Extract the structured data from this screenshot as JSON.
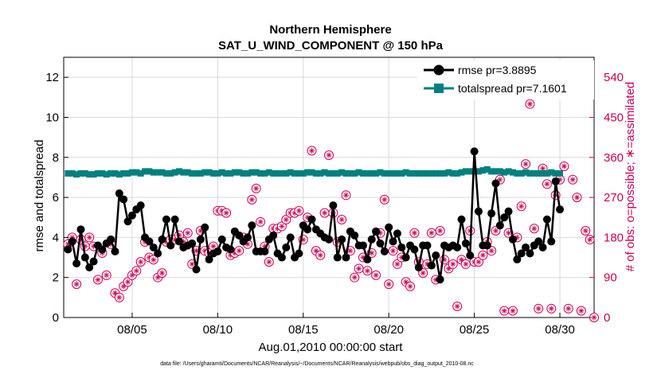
{
  "chart_data": {
    "type": "line",
    "title": "Northern Hemisphere",
    "subtitle": "SAT_U_WIND_COMPONENT @ 150 hPa",
    "xlabel": "Aug.01,2010 00:00:00 start",
    "ylabel": "rmse and totalspread",
    "y2label": "# of obs: o=possible; ∗=assimilated",
    "footnote": "data file: /Users/gharamti/Documents/NCAR/Reanalysis/~/Documents/NCAR/Reanalysis/webpub/obs_diag_output_2010-08.nc",
    "xlim": [
      1.0,
      32.0
    ],
    "ylim": [
      0,
      13
    ],
    "y2lim": [
      0,
      585
    ],
    "x_ticks": [
      5,
      10,
      15,
      20,
      25,
      30
    ],
    "x_tick_labels": [
      "08/05",
      "08/10",
      "08/15",
      "08/20",
      "08/25",
      "08/30"
    ],
    "y_ticks": [
      0,
      2,
      4,
      6,
      8,
      10,
      12
    ],
    "y_tick_labels": [
      "0",
      "2",
      "4",
      "6",
      "8",
      "10",
      "12"
    ],
    "y2_ticks": [
      0,
      90,
      180,
      270,
      360,
      450,
      540
    ],
    "y2_tick_labels": [
      "0",
      "90",
      "180",
      "270",
      "360",
      "450",
      "540"
    ],
    "x_step_days": 0.25,
    "x_start": 1.25,
    "series": [
      {
        "name": "rmse",
        "legend_label": "rmse pr=3.8895",
        "color": "#000000",
        "marker": "circle",
        "values": [
          3.4,
          3.8,
          2.7,
          4.4,
          3.0,
          2.5,
          2.8,
          3.6,
          3.4,
          3.7,
          3.9,
          3.3,
          6.2,
          5.9,
          4.8,
          5.1,
          5.4,
          5.6,
          4.0,
          3.8,
          3.5,
          3.2,
          3.9,
          4.9,
          3.6,
          4.9,
          3.8,
          3.5,
          3.6,
          3.7,
          2.4,
          3.9,
          4.5,
          2.9,
          3.2,
          3.3,
          3.9,
          3.5,
          3.4,
          4.3,
          4.1,
          3.8,
          4.0,
          4.6,
          3.3,
          3.3,
          3.3,
          3.9,
          4.1,
          3.2,
          3.0,
          3.5,
          4.0,
          3.0,
          3.2,
          4.6,
          4.4,
          4.9,
          4.4,
          4.2,
          4.0,
          3.9,
          5.6,
          3.0,
          3.9,
          3.0,
          4.3,
          4.1,
          3.6,
          3.6,
          2.9,
          3.9,
          4.3,
          3.7,
          3.3,
          4.5,
          3.8,
          4.2,
          3.5,
          3.0,
          3.6,
          3.4,
          2.5,
          3.6,
          3.6,
          2.6,
          3.1,
          1.9,
          3.6,
          3.5,
          3.6,
          3.5,
          4.9,
          3.7,
          3.1,
          8.3,
          5.3,
          3.6,
          3.6,
          5.2,
          6.7,
          4.6,
          5.0,
          5.3,
          3.9,
          2.9,
          3.2,
          3.5,
          3.2,
          3.6,
          3.8,
          3.5,
          4.9,
          3.8,
          6.8,
          5.4
        ],
        "summary": "pr=3.8895"
      },
      {
        "name": "totalspread",
        "legend_label": "totalspread pr=7.1601",
        "color": "#008080",
        "marker": "square",
        "values": [
          7.2,
          7.2,
          7.15,
          7.2,
          7.2,
          7.15,
          7.15,
          7.2,
          7.2,
          7.15,
          7.2,
          7.2,
          7.15,
          7.2,
          7.2,
          7.25,
          7.25,
          7.2,
          7.3,
          7.3,
          7.25,
          7.25,
          7.25,
          7.2,
          7.2,
          7.25,
          7.3,
          7.25,
          7.25,
          7.2,
          7.2,
          7.2,
          7.25,
          7.25,
          7.2,
          7.2,
          7.25,
          7.2,
          7.2,
          7.25,
          7.25,
          7.2,
          7.2,
          7.25,
          7.25,
          7.2,
          7.2,
          7.25,
          7.2,
          7.2,
          7.2,
          7.2,
          7.25,
          7.2,
          7.2,
          7.2,
          7.25,
          7.25,
          7.2,
          7.2,
          7.25,
          7.2,
          7.2,
          7.2,
          7.25,
          7.2,
          7.2,
          7.2,
          7.25,
          7.2,
          7.2,
          7.2,
          7.2,
          7.25,
          7.2,
          7.2,
          7.2,
          7.2,
          7.2,
          7.25,
          7.2,
          7.2,
          7.2,
          7.2,
          7.2,
          7.2,
          7.2,
          7.2,
          7.2,
          7.25,
          7.2,
          7.2,
          7.25,
          7.3,
          7.3,
          7.3,
          7.3,
          7.35,
          7.4,
          7.3,
          7.3,
          7.3,
          7.25,
          7.3,
          7.25,
          7.2,
          7.2,
          7.25,
          7.2,
          7.2,
          7.2,
          7.2,
          7.2,
          7.25,
          7.2,
          7.2
        ],
        "summary": "pr=7.1601"
      }
    ],
    "obs_series": {
      "name": "# of obs",
      "color": "#cc0055",
      "marker": "circle-with-asterisk",
      "axis": "right",
      "points": [
        [
          1.25,
          165
        ],
        [
          1.5,
          180
        ],
        [
          1.75,
          75
        ],
        [
          2.0,
          175
        ],
        [
          2.25,
          160
        ],
        [
          2.5,
          180
        ],
        [
          2.75,
          160
        ],
        [
          3.0,
          85
        ],
        [
          3.25,
          145
        ],
        [
          3.5,
          95
        ],
        [
          3.75,
          165
        ],
        [
          4.0,
          55
        ],
        [
          4.25,
          45
        ],
        [
          4.5,
          70
        ],
        [
          4.75,
          80
        ],
        [
          5.0,
          95
        ],
        [
          5.25,
          105
        ],
        [
          5.5,
          125
        ],
        [
          5.75,
          170
        ],
        [
          6.0,
          135
        ],
        [
          6.25,
          130
        ],
        [
          6.5,
          90
        ],
        [
          6.75,
          100
        ],
        [
          7.0,
          170
        ],
        [
          7.25,
          175
        ],
        [
          7.5,
          175
        ],
        [
          7.75,
          185
        ],
        [
          8.0,
          170
        ],
        [
          8.25,
          190
        ],
        [
          8.5,
          120
        ],
        [
          8.75,
          150
        ],
        [
          9.0,
          195
        ],
        [
          9.25,
          150
        ],
        [
          9.5,
          145
        ],
        [
          9.75,
          160
        ],
        [
          10.0,
          240
        ],
        [
          10.25,
          240
        ],
        [
          10.5,
          235
        ],
        [
          10.75,
          140
        ],
        [
          11.0,
          145
        ],
        [
          11.25,
          150
        ],
        [
          11.5,
          180
        ],
        [
          11.75,
          165
        ],
        [
          12.0,
          265
        ],
        [
          12.25,
          290
        ],
        [
          12.5,
          215
        ],
        [
          12.75,
          160
        ],
        [
          13.0,
          125
        ],
        [
          13.25,
          200
        ],
        [
          13.5,
          200
        ],
        [
          13.75,
          205
        ],
        [
          14.0,
          220
        ],
        [
          14.25,
          235
        ],
        [
          14.5,
          235
        ],
        [
          14.75,
          240
        ],
        [
          15.0,
          175
        ],
        [
          15.25,
          225
        ],
        [
          15.5,
          375
        ],
        [
          15.75,
          150
        ],
        [
          16.0,
          140
        ],
        [
          16.25,
          235
        ],
        [
          16.5,
          365
        ],
        [
          16.75,
          235
        ],
        [
          17.0,
          170
        ],
        [
          17.25,
          220
        ],
        [
          17.5,
          275
        ],
        [
          17.75,
          150
        ],
        [
          18.0,
          90
        ],
        [
          18.25,
          110
        ],
        [
          18.5,
          135
        ],
        [
          18.75,
          105
        ],
        [
          19.0,
          145
        ],
        [
          19.25,
          95
        ],
        [
          19.5,
          190
        ],
        [
          19.75,
          265
        ],
        [
          20.0,
          75
        ],
        [
          20.25,
          150
        ],
        [
          20.5,
          120
        ],
        [
          20.75,
          135
        ],
        [
          21.0,
          80
        ],
        [
          21.25,
          70
        ],
        [
          21.5,
          190
        ],
        [
          21.75,
          125
        ],
        [
          22.0,
          100
        ],
        [
          22.25,
          120
        ],
        [
          22.5,
          190
        ],
        [
          22.75,
          85
        ],
        [
          23.0,
          195
        ],
        [
          23.25,
          130
        ],
        [
          23.5,
          110
        ],
        [
          23.75,
          120
        ],
        [
          24.0,
          25
        ],
        [
          24.25,
          130
        ],
        [
          24.5,
          120
        ],
        [
          24.75,
          195
        ],
        [
          25.0,
          125
        ],
        [
          25.25,
          125
        ],
        [
          25.5,
          140
        ],
        [
          25.75,
          170
        ],
        [
          26.0,
          150
        ],
        [
          26.25,
          195
        ],
        [
          26.5,
          310
        ],
        [
          26.75,
          15
        ],
        [
          27.0,
          190
        ],
        [
          27.25,
          15
        ],
        [
          27.5,
          180
        ],
        [
          27.75,
          250
        ],
        [
          28.0,
          345
        ],
        [
          28.25,
          480
        ],
        [
          28.5,
          200
        ],
        [
          28.75,
          20
        ],
        [
          29.0,
          335
        ],
        [
          29.25,
          300
        ],
        [
          29.5,
          20
        ],
        [
          29.75,
          275
        ],
        [
          30.0,
          310
        ],
        [
          30.25,
          340
        ],
        [
          30.5,
          20
        ],
        [
          30.75,
          310
        ],
        [
          31.0,
          270
        ],
        [
          31.25,
          15
        ],
        [
          31.5,
          195
        ],
        [
          31.75,
          175
        ],
        [
          32.0,
          0
        ]
      ]
    }
  }
}
